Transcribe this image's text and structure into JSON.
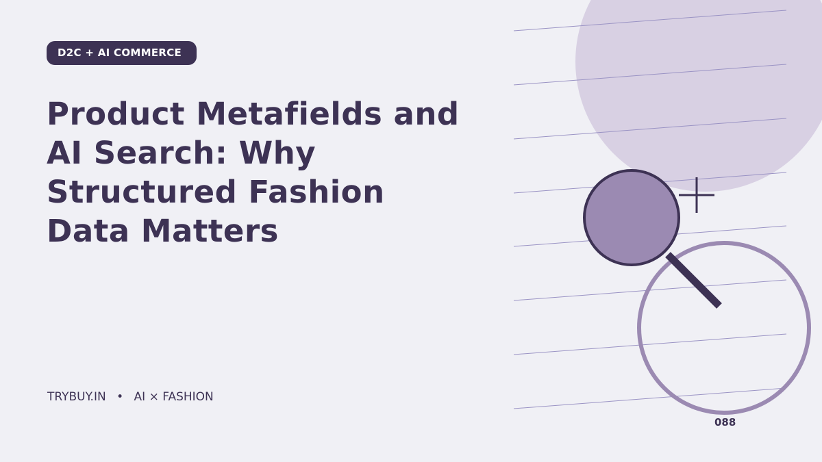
{
  "badge": "D2C + AI COMMERCE",
  "title_lines": [
    "Product Metafields and",
    "AI Search: Why",
    "Structured Fashion",
    "Data Matters"
  ],
  "footer": {
    "site": "TRYBUY.IN",
    "separator": "•",
    "tagline": "AI × FASHION"
  },
  "number": "088"
}
